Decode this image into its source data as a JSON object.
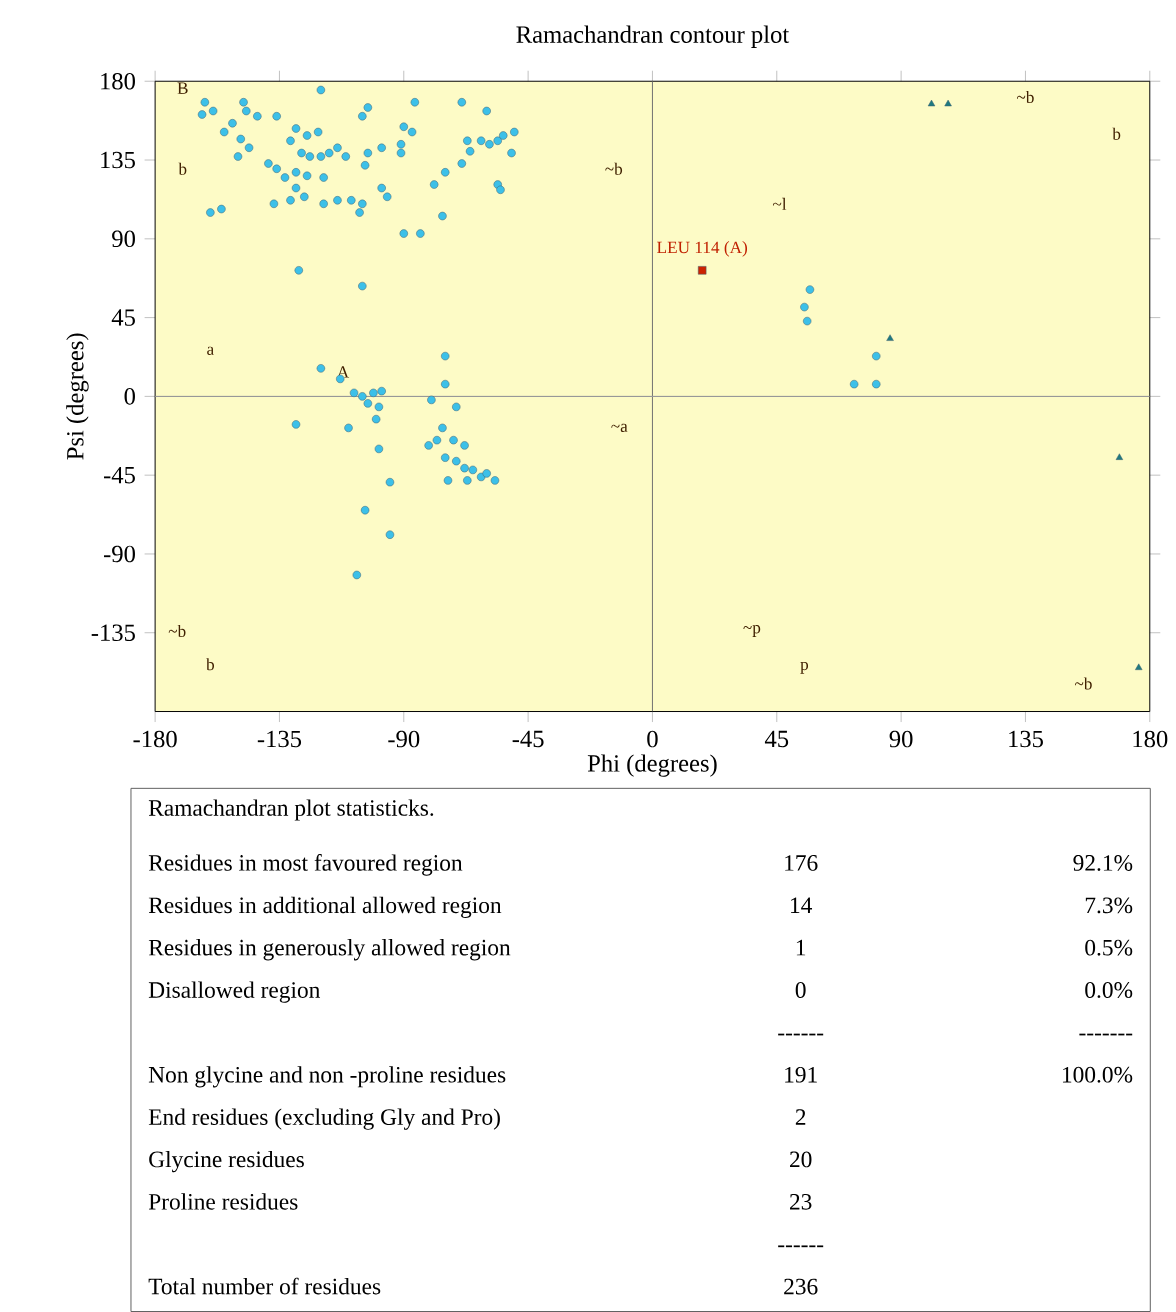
{
  "chart_data": {
    "type": "scatter",
    "title": "Ramachandran contour plot",
    "xlabel": "Phi (degrees)",
    "ylabel": "Psi (degrees)",
    "xlim": [
      -180,
      180
    ],
    "ylim": [
      -180,
      180
    ],
    "xticks": [
      -180,
      -135,
      -90,
      -45,
      0,
      45,
      90,
      135,
      180
    ],
    "yticks": [
      -135,
      -90,
      -45,
      0,
      45,
      90,
      135,
      180
    ],
    "grid": false,
    "ref_lines": [
      {
        "axis": "x",
        "value": 0,
        "color": "#707070"
      },
      {
        "axis": "y",
        "value": 0,
        "color": "#989898"
      }
    ],
    "series": [
      {
        "marker": "circle",
        "color": "#3cc0e8",
        "x": [
          -162,
          -159,
          -163,
          -148,
          -147,
          -152,
          -155,
          -149,
          -146,
          -150,
          -143,
          -136,
          -129,
          -131,
          -125,
          -121,
          -127,
          -124,
          -120,
          -117,
          -114,
          -111,
          -129,
          -125,
          -119,
          -133,
          -136,
          -139,
          -129,
          -126,
          -131,
          -119,
          -114,
          -109,
          -105,
          -106,
          -96,
          -98,
          -91,
          -103,
          -104,
          -98,
          -90,
          -87,
          -86,
          -91,
          -79,
          -75,
          -69,
          -66,
          -67,
          -62,
          -59,
          -56,
          -54,
          -50,
          -51,
          -56,
          -55,
          -76,
          -103,
          -105,
          -137,
          -120,
          -160,
          -156,
          -128,
          -105,
          -90,
          -84,
          -69,
          -60,
          -120,
          -113,
          -108,
          -105,
          -101,
          -98,
          -103,
          -99,
          -100,
          -110,
          -129,
          -99,
          -95,
          -75,
          -75,
          -80,
          -71,
          -76,
          -78,
          -81,
          -72,
          -68,
          -75,
          -71,
          -68,
          -65,
          -62,
          -60,
          -57,
          -67,
          -74,
          -104,
          -95,
          -107,
          57,
          55,
          56,
          73,
          81,
          81
        ],
        "values": [
          168,
          163,
          161,
          168,
          163,
          156,
          151,
          147,
          142,
          137,
          160,
          160,
          153,
          146,
          149,
          151,
          139,
          137,
          137,
          139,
          142,
          137,
          128,
          126,
          125,
          125,
          130,
          133,
          119,
          114,
          112,
          110,
          112,
          112,
          110,
          105,
          114,
          119,
          139,
          139,
          132,
          142,
          154,
          151,
          168,
          144,
          121,
          128,
          133,
          140,
          146,
          146,
          144,
          146,
          149,
          151,
          139,
          121,
          118,
          103,
          165,
          160,
          110,
          175,
          105,
          107,
          72,
          63,
          93,
          93,
          168,
          163,
          16,
          10,
          2,
          0,
          2,
          3,
          -4,
          -6,
          -13,
          -18,
          -16,
          -30,
          -49,
          23,
          7,
          -2,
          -6,
          -18,
          -25,
          -28,
          -25,
          -28,
          -35,
          -37,
          -41,
          -42,
          -46,
          -44,
          -48,
          -48,
          -48,
          -65,
          -79,
          -102,
          61,
          51,
          43,
          7,
          7,
          23
        ]
      },
      {
        "marker": "triangle",
        "color": "#1e7a80",
        "x": [
          101,
          107,
          86,
          169,
          176
        ],
        "values": [
          167,
          167,
          33,
          -35,
          -155
        ]
      },
      {
        "marker": "square",
        "color": "#cc2200",
        "x": [
          18
        ],
        "values": [
          72
        ]
      }
    ],
    "annotations": [
      {
        "text": "LEU 114 (A)",
        "x": 18,
        "y": 72
      },
      "A",
      "B",
      "a",
      "b",
      "~b",
      "~a",
      "~l",
      "~p",
      "p",
      "~b",
      "b",
      "~b",
      "b",
      "~b",
      "Ramachandran plot statisticks.",
      "Residues in most favoured region",
      "176",
      "92.1%",
      "Residues in additional allowed region",
      "14",
      "7.3%",
      "Residues in generously allowed region",
      "1",
      "0.5%",
      "Disallowed region",
      "0",
      "0.0%",
      "------",
      "-------",
      "Non glycine and non -proline residues",
      "191",
      "100.0%",
      "End residues (excluding Gly and Pro)",
      "2",
      "Glycine residues",
      "20",
      "Proline residues",
      "23",
      "------",
      "Total number of residues",
      "236"
    ]
  }
}
